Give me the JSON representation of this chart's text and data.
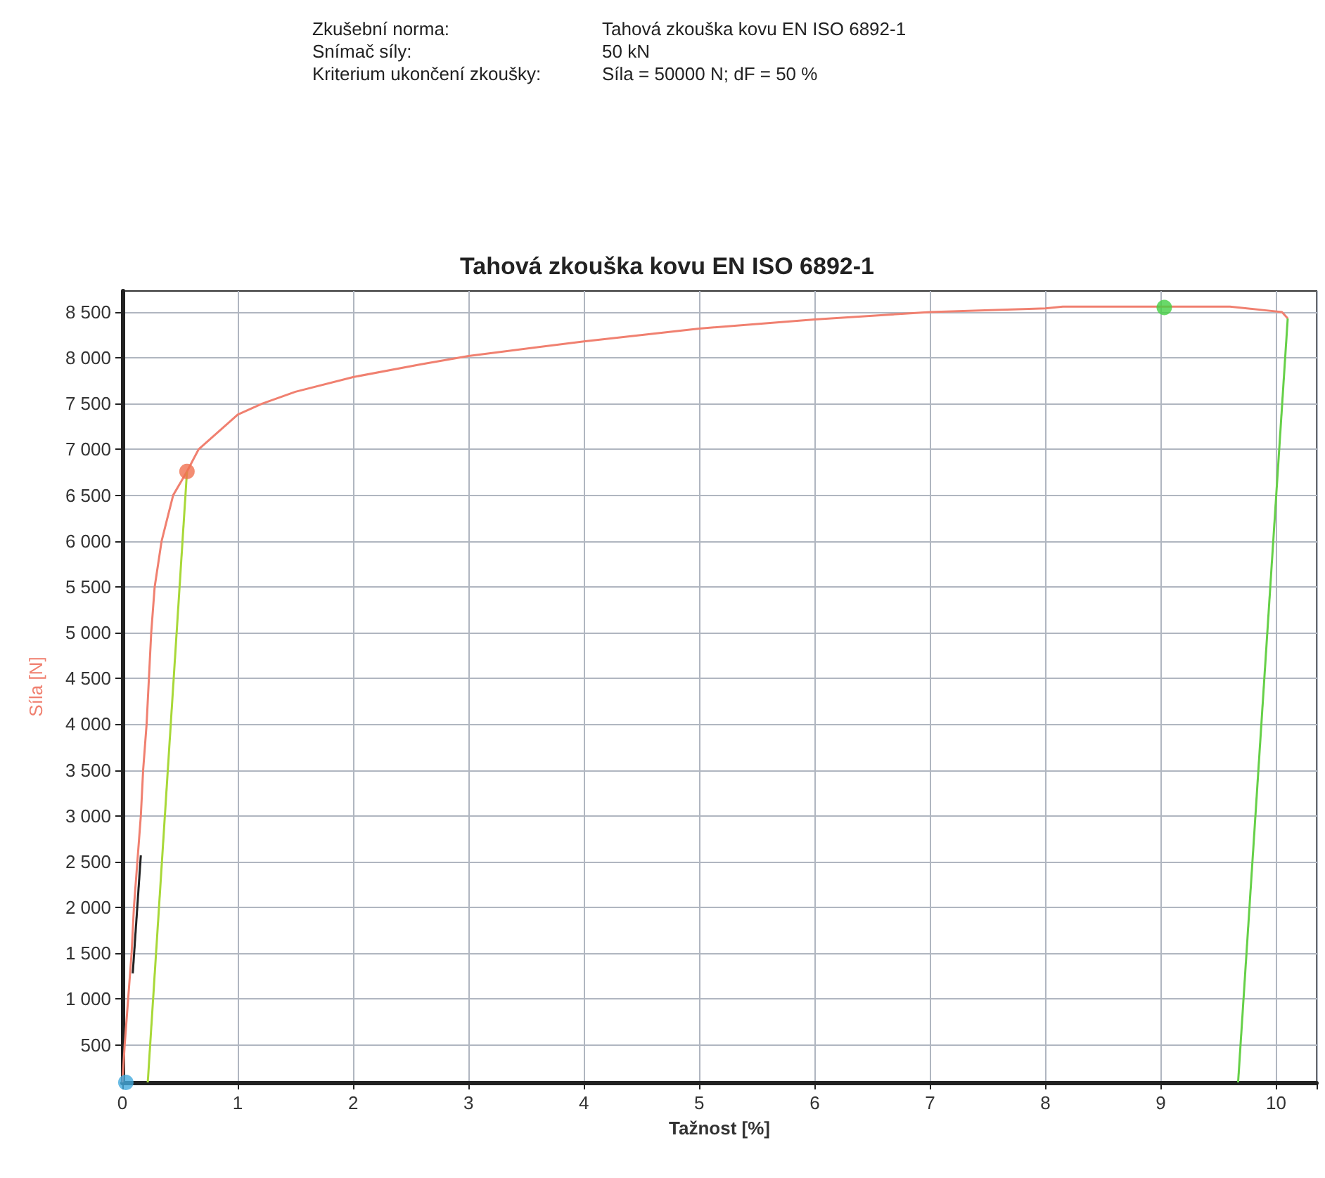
{
  "chart_data": {
    "type": "line",
    "title": "Tahová zkouška kovu EN ISO 6892-1",
    "xlabel": "Tažnost [%]",
    "ylabel": "Síla [N]",
    "annotations": [
      "Zkušební norma:",
      "Tahová zkouška kovu EN ISO 6892-1",
      "Snímač síly:",
      "50 kN",
      "Kriterium ukončení zkoušky:",
      "Síla = 50000 N; dF = 50 %"
    ],
    "xlim": [
      0,
      10.35
    ],
    "ylim": [
      90,
      8730
    ],
    "xticks": [
      0,
      1,
      2,
      3,
      4,
      5,
      6,
      7,
      8,
      9,
      10
    ],
    "yticks": [
      500,
      {
        "value": 1000,
        "label": "1 000"
      },
      {
        "value": 1500,
        "label": "1 500"
      },
      {
        "value": 2000,
        "label": "2 000"
      },
      {
        "value": 2500,
        "label": "2 500"
      },
      {
        "value": 3000,
        "label": "3 000"
      },
      {
        "value": 3500,
        "label": "3 500"
      },
      {
        "value": 4000,
        "label": "4 000"
      },
      {
        "value": 4500,
        "label": "4 500"
      },
      {
        "value": 5000,
        "label": "5 000"
      },
      {
        "value": 5500,
        "label": "5 500"
      },
      {
        "value": 6000,
        "label": "6 000"
      },
      {
        "value": 6500,
        "label": "6 500"
      },
      {
        "value": 7000,
        "label": "7 000"
      },
      {
        "value": 7500,
        "label": "7 500"
      },
      {
        "value": 8000,
        "label": "8 000"
      },
      {
        "value": 8500,
        "label": "8 500"
      }
    ],
    "grid": true,
    "series": [
      {
        "color": "#f08070",
        "x": [
          0,
          0.02,
          0.05,
          0.08,
          0.1,
          0.13,
          0.16,
          0.18,
          0.21,
          0.23,
          0.25,
          0.28,
          0.34,
          0.44,
          0.56,
          0.66,
          1,
          1.21,
          1.5,
          2,
          2.59,
          3,
          4,
          5,
          6,
          7,
          8,
          8.15,
          9,
          9.6,
          9.9,
          10.05,
          10.1
        ],
        "values": [
          90,
          500,
          1000,
          1500,
          2000,
          2500,
          3000,
          3500,
          4000,
          4500,
          5000,
          5500,
          6000,
          6500,
          6760,
          7000,
          7380,
          7500,
          7630,
          7790,
          7930,
          8020,
          8180,
          8320,
          8420,
          8500,
          8540,
          8560,
          8560,
          8560,
          8520,
          8500,
          8430
        ]
      },
      {
        "color": "#222222",
        "x": [
          0.09,
          0.16
        ],
        "values": [
          1280,
          2570
        ]
      },
      {
        "color": "#a8d838",
        "x": [
          0.22,
          0.56
        ],
        "values": [
          90,
          6760
        ]
      },
      {
        "color": "#66d048",
        "x": [
          9.67,
          10.1
        ],
        "values": [
          90,
          8430
        ]
      },
      {
        "type": "scatter",
        "color": "#f07050",
        "x": [
          0.56
        ],
        "values": [
          6760
        ]
      },
      {
        "type": "scatter",
        "color": "#44d044",
        "x": [
          9.03
        ],
        "values": [
          8550
        ]
      },
      {
        "type": "scatter",
        "color": "#44aadd",
        "x": [
          0.03
        ],
        "values": [
          90
        ]
      }
    ]
  }
}
